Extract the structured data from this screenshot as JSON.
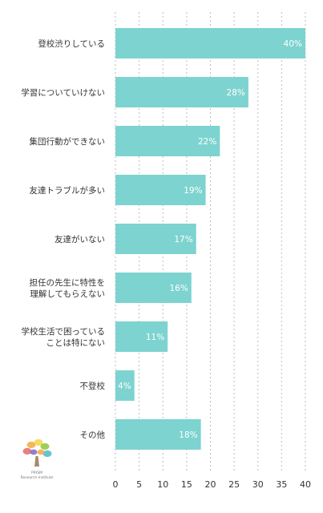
{
  "chart_data": {
    "type": "bar",
    "orientation": "horizontal",
    "categories": [
      [
        "登校渋りしている"
      ],
      [
        "学習についていけない"
      ],
      [
        "集団行動ができない"
      ],
      [
        "友達トラブルが多い"
      ],
      [
        "友達がいない"
      ],
      [
        "担任の先生に特性を",
        "理解してもらえない"
      ],
      [
        "学校生活で困っている",
        "ことは特にない"
      ],
      [
        "不登校"
      ],
      [
        "その他"
      ]
    ],
    "values": [
      40,
      28,
      22,
      19,
      17,
      16,
      11,
      4,
      18
    ],
    "value_labels": [
      "40%",
      "28%",
      "22%",
      "19%",
      "17%",
      "16%",
      "11%",
      "4%",
      "18%"
    ],
    "xlim": [
      0,
      40
    ],
    "x_ticks": [
      0,
      5,
      10,
      15,
      20,
      25,
      30,
      35,
      40
    ],
    "x_tick_labels": [
      "0",
      "5",
      "10",
      "15",
      "20",
      "25",
      "30",
      "35",
      "40"
    ],
    "grid": true,
    "grid_style": "dotted vertical",
    "bar_color": "#7dd3cf",
    "value_label_color": "#ffffff",
    "text_color": "#333333",
    "grid_color": "#bbbbbb"
  },
  "logo": {
    "name": "PRISM",
    "subtitle": "Research Institute",
    "icon": "tree-logo-icon",
    "colors": [
      "#e86a6a",
      "#f2a93b",
      "#f5d547",
      "#8cc63e",
      "#4bb8c9",
      "#7e6bc4"
    ]
  }
}
